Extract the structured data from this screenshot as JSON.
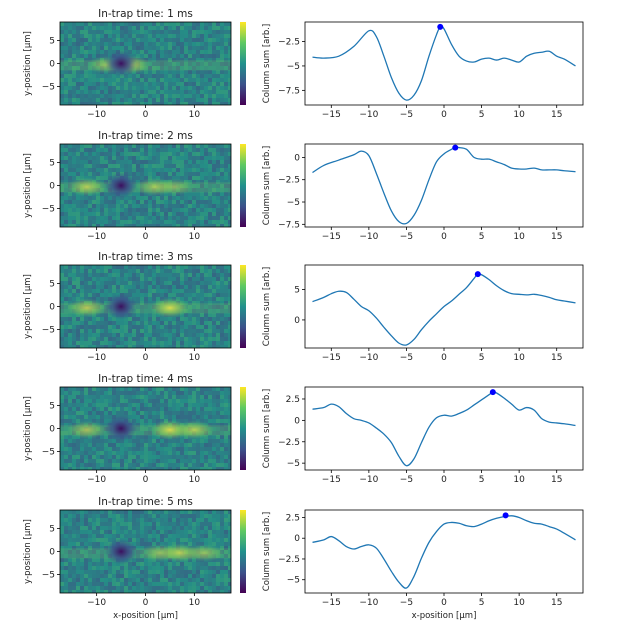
{
  "figure": {
    "shared_xlabel": "x-position [μm]",
    "colors": {
      "line": "#1f77b4",
      "marker": "#0000ff",
      "heatmap_base": "#2a8a7e"
    }
  },
  "chart_data": [
    {
      "panel": 1,
      "heatmap": {
        "type": "heatmap",
        "title": "In-trap time: 1 ms",
        "ylabel": "y-position [μm]",
        "xlim": [
          -17.5,
          17.5
        ],
        "ylim": [
          -9,
          9
        ],
        "xticks": [
          -10,
          0,
          10
        ],
        "yticks": [
          -5,
          0,
          5
        ],
        "features": {
          "dark_center_x": -5,
          "bright_band": [
            [
              -3,
              0.8
            ],
            [
              -8,
              0.6
            ]
          ]
        },
        "colorbar": "viridis"
      },
      "line": {
        "type": "line",
        "xlabel": "",
        "ylabel": "Column sum [arb.]",
        "xlim": [
          -18.5,
          18.5
        ],
        "ylim": [
          -9,
          -0.5
        ],
        "xticks": [
          -15,
          -10,
          -5,
          0,
          5,
          10,
          15
        ],
        "yticks": [
          -2.5,
          -5.0,
          -7.5
        ],
        "x": [
          -17.5,
          -16,
          -14,
          -12,
          -10,
          -9,
          -8,
          -7,
          -6,
          -5,
          -4,
          -3,
          -2,
          -1,
          -0.5,
          0,
          1,
          2,
          3,
          4,
          5,
          6,
          7,
          8,
          9,
          10,
          11,
          12,
          13,
          14,
          15,
          16,
          17.5
        ],
        "y": [
          -4.1,
          -4.2,
          -4.0,
          -3.0,
          -1.4,
          -2.0,
          -4.0,
          -6.2,
          -7.8,
          -8.5,
          -8.0,
          -6.5,
          -4.0,
          -1.8,
          -1.0,
          -1.2,
          -2.8,
          -4.0,
          -4.5,
          -4.6,
          -4.3,
          -4.2,
          -4.4,
          -4.2,
          -4.4,
          -4.6,
          -4.0,
          -3.7,
          -3.6,
          -3.5,
          -4.0,
          -4.3,
          -5.0
        ],
        "max_marker": {
          "x": -0.5,
          "y": -1.0
        }
      }
    },
    {
      "panel": 2,
      "heatmap": {
        "type": "heatmap",
        "title": "In-trap time: 2 ms",
        "ylabel": "y-position [μm]",
        "xlim": [
          -17.5,
          17.5
        ],
        "ylim": [
          -9,
          9
        ],
        "xticks": [
          -10,
          0,
          10
        ],
        "yticks": [
          -5,
          0,
          5
        ],
        "features": {
          "dark_center_x": -5,
          "bright_band": [
            [
              -12,
              0.8
            ],
            [
              2,
              0.7
            ],
            [
              6,
              0.5
            ]
          ]
        },
        "colorbar": "viridis"
      },
      "line": {
        "type": "line",
        "xlabel": "",
        "ylabel": "Column sum [arb.]",
        "xlim": [
          -18.5,
          18.5
        ],
        "ylim": [
          -7.8,
          1.5
        ],
        "xticks": [
          -15,
          -10,
          -5,
          0,
          5,
          10,
          15
        ],
        "yticks": [
          0.0,
          -2.5,
          -5.0,
          -7.5
        ],
        "x": [
          -17.5,
          -16,
          -14,
          -12,
          -11,
          -10,
          -9,
          -8,
          -7,
          -6,
          -5,
          -4,
          -3,
          -2,
          -1,
          0,
          1,
          1.5,
          2,
          3,
          4,
          5,
          6,
          7,
          8,
          9,
          10,
          11,
          12,
          13,
          14,
          15,
          16,
          17.5
        ],
        "y": [
          -1.7,
          -0.9,
          -0.3,
          0.3,
          0.7,
          0.2,
          -1.8,
          -4.0,
          -6.0,
          -7.2,
          -7.4,
          -6.5,
          -4.8,
          -2.5,
          -0.5,
          0.4,
          0.9,
          1.1,
          1.1,
          0.9,
          0.0,
          -0.2,
          -0.2,
          -0.5,
          -0.8,
          -1.2,
          -1.3,
          -1.3,
          -1.2,
          -1.4,
          -1.4,
          -1.4,
          -1.5,
          -1.6
        ],
        "max_marker": {
          "x": 1.5,
          "y": 1.1
        }
      }
    },
    {
      "panel": 3,
      "heatmap": {
        "type": "heatmap",
        "title": "In-trap time: 3 ms",
        "ylabel": "y-position [μm]",
        "xlim": [
          -17.5,
          17.5
        ],
        "ylim": [
          -9,
          9
        ],
        "xticks": [
          -10,
          0,
          10
        ],
        "yticks": [
          -5,
          0,
          5
        ],
        "features": {
          "dark_center_x": -5,
          "bright_band": [
            [
              -12,
              0.8
            ],
            [
              5,
              1.0
            ]
          ]
        },
        "colorbar": "viridis"
      },
      "line": {
        "type": "line",
        "xlabel": "",
        "ylabel": "Column sum [arb.]",
        "xlim": [
          -18.5,
          18.5
        ],
        "ylim": [
          -4.6,
          9.0
        ],
        "xticks": [
          -15,
          -10,
          -5,
          0,
          5,
          10,
          15
        ],
        "yticks": [
          5,
          0
        ],
        "x": [
          -17.5,
          -16,
          -15,
          -14,
          -13,
          -12,
          -11,
          -10,
          -9,
          -8,
          -7,
          -6,
          -5,
          -4,
          -3,
          -2,
          -1,
          0,
          1,
          2,
          3,
          4,
          4.5,
          5,
          6,
          7,
          8,
          9,
          10,
          11,
          12,
          13,
          14,
          15,
          16,
          17.5
        ],
        "y": [
          3.0,
          3.7,
          4.3,
          4.7,
          4.5,
          3.4,
          2.2,
          1.5,
          0.3,
          -1.2,
          -2.6,
          -3.8,
          -4.1,
          -3.2,
          -1.6,
          -0.2,
          1.0,
          2.2,
          3.1,
          4.2,
          5.3,
          6.8,
          7.5,
          7.4,
          6.6,
          5.6,
          4.8,
          4.3,
          4.2,
          4.1,
          4.2,
          4.0,
          3.7,
          3.3,
          3.1,
          2.8
        ],
        "max_marker": {
          "x": 4.5,
          "y": 7.5
        }
      }
    },
    {
      "panel": 4,
      "heatmap": {
        "type": "heatmap",
        "title": "In-trap time: 4 ms",
        "ylabel": "y-position [μm]",
        "xlim": [
          -17.5,
          17.5
        ],
        "ylim": [
          -9,
          9
        ],
        "xticks": [
          -10,
          0,
          10
        ],
        "yticks": [
          -5,
          0,
          5
        ],
        "features": {
          "dark_center_x": -5,
          "bright_band": [
            [
              -12,
              0.7
            ],
            [
              5,
              1.0
            ],
            [
              10,
              0.8
            ]
          ]
        },
        "colorbar": "viridis"
      },
      "line": {
        "type": "line",
        "xlabel": "",
        "ylabel": "Column sum [arb.]",
        "xlim": [
          -18.5,
          18.5
        ],
        "ylim": [
          -5.8,
          3.9
        ],
        "xticks": [
          -15,
          -10,
          -5,
          0,
          5,
          10,
          15
        ],
        "yticks": [
          2.5,
          0.0,
          -2.5,
          -5.0
        ],
        "x": [
          -17.5,
          -16,
          -15,
          -14,
          -13,
          -12,
          -11,
          -10,
          -9,
          -8,
          -7,
          -6,
          -5,
          -4,
          -3,
          -2,
          -1,
          0,
          1,
          2,
          3,
          4,
          5,
          6,
          6.5,
          7,
          8,
          9,
          10,
          11,
          12,
          13,
          14,
          15,
          16,
          17.5
        ],
        "y": [
          1.3,
          1.5,
          1.9,
          1.6,
          0.8,
          0.2,
          0.0,
          -0.3,
          -0.9,
          -1.6,
          -2.6,
          -4.2,
          -5.3,
          -4.5,
          -2.6,
          -0.8,
          0.3,
          0.6,
          0.5,
          0.8,
          1.2,
          1.8,
          2.4,
          3.0,
          3.3,
          3.2,
          2.6,
          1.9,
          1.2,
          1.5,
          1.2,
          0.2,
          -0.2,
          -0.3,
          -0.4,
          -0.6
        ],
        "max_marker": {
          "x": 6.5,
          "y": 3.3
        }
      }
    },
    {
      "panel": 5,
      "heatmap": {
        "type": "heatmap",
        "title": "In-trap time: 5 ms",
        "ylabel": "y-position [μm]",
        "xlabel": "x-position [μm]",
        "xlim": [
          -17.5,
          17.5
        ],
        "ylim": [
          -9,
          9
        ],
        "xticks": [
          -10,
          0,
          10
        ],
        "yticks": [
          -5,
          0,
          5
        ],
        "features": {
          "dark_center_x": -5,
          "bright_band": [
            [
              3,
              0.6
            ],
            [
              7,
              0.8
            ],
            [
              12,
              0.6
            ]
          ]
        },
        "colorbar": "viridis"
      },
      "line": {
        "type": "line",
        "xlabel": "x-position [μm]",
        "ylabel": "Column sum [arb.]",
        "xlim": [
          -18.5,
          18.5
        ],
        "ylim": [
          -6.6,
          3.4
        ],
        "xticks": [
          -15,
          -10,
          -5,
          0,
          5,
          10,
          15
        ],
        "yticks": [
          2.5,
          0.0,
          -2.5,
          -5.0
        ],
        "x": [
          -17.5,
          -16,
          -15,
          -14,
          -13,
          -12,
          -11,
          -10,
          -9,
          -8,
          -7,
          -6,
          -5,
          -4,
          -3,
          -2,
          -1,
          0,
          1,
          2,
          3,
          4,
          5,
          6,
          7,
          8,
          9,
          10,
          11,
          12,
          13,
          14,
          15,
          16,
          17.5
        ],
        "y": [
          -0.5,
          -0.2,
          0.2,
          -0.3,
          -1.0,
          -1.3,
          -1.0,
          -0.8,
          -1.2,
          -2.5,
          -4.0,
          -5.3,
          -6.0,
          -4.6,
          -2.4,
          -0.5,
          0.8,
          1.7,
          1.9,
          1.8,
          1.5,
          1.4,
          1.7,
          2.1,
          2.4,
          2.6,
          2.7,
          2.5,
          2.1,
          1.8,
          1.7,
          1.4,
          1.1,
          0.6,
          -0.2
        ],
        "max_marker": {
          "x": 8.2,
          "y": 2.75
        }
      }
    }
  ]
}
